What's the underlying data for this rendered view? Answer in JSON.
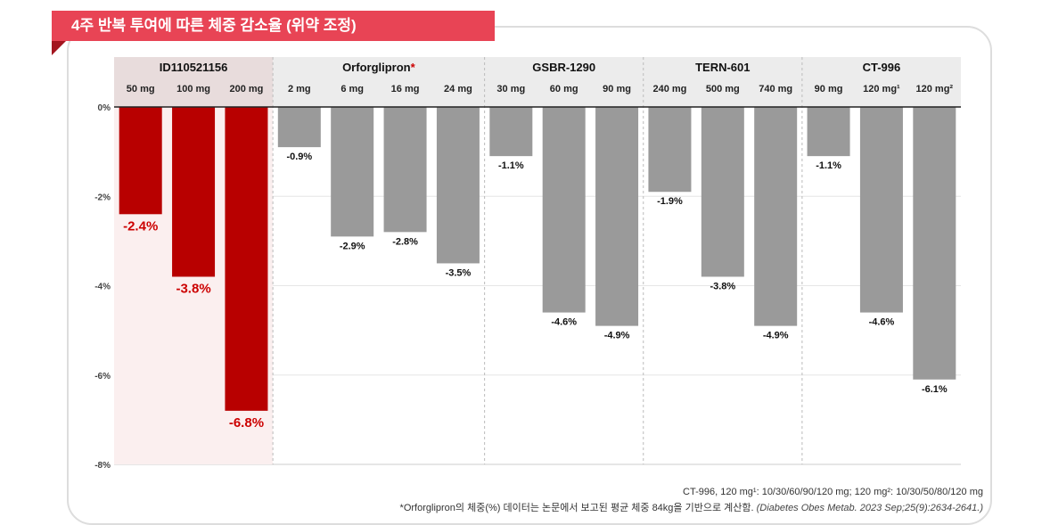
{
  "title": "4주 반복 투여에 따른 체중 감소율 (위약 조정)",
  "chart_data": {
    "type": "bar",
    "ylim": [
      -8,
      0
    ],
    "yticks": [
      "0%",
      "-2%",
      "-4%",
      "-6%",
      "-8%"
    ],
    "tick_values": [
      0,
      -2,
      -4,
      -6,
      -8
    ],
    "grid": true,
    "highlight_color": "#b80000",
    "default_color": "#9a9a9a",
    "groups": [
      {
        "name": "ID110521156",
        "highlight": true,
        "categories": [
          "50 mg",
          "100 mg",
          "200 mg"
        ],
        "values": [
          -2.4,
          -3.8,
          -6.8
        ],
        "labels": [
          "-2.4%",
          "-3.8%",
          "-6.8%"
        ]
      },
      {
        "name": "Orforglipron",
        "marker": "*",
        "categories": [
          "2 mg",
          "6 mg",
          "16 mg",
          "24 mg"
        ],
        "values": [
          -0.9,
          -2.9,
          -2.8,
          -3.5
        ],
        "labels": [
          "-0.9%",
          "-2.9%",
          "-2.8%",
          "-3.5%"
        ]
      },
      {
        "name": "GSBR-1290",
        "categories": [
          "30 mg",
          "60 mg",
          "90 mg"
        ],
        "values": [
          -1.1,
          -4.6,
          -4.9
        ],
        "labels": [
          "-1.1%",
          "-4.6%",
          "-4.9%"
        ]
      },
      {
        "name": "TERN-601",
        "categories": [
          "240 mg",
          "500 mg",
          "740 mg"
        ],
        "values": [
          -1.9,
          -3.8,
          -4.9
        ],
        "labels": [
          "-1.9%",
          "-3.8%",
          "-4.9%"
        ]
      },
      {
        "name": "CT-996",
        "categories": [
          "90 mg",
          "120 mg¹",
          "120 mg²"
        ],
        "values": [
          -1.1,
          -4.6,
          -6.1
        ],
        "labels": [
          "-1.1%",
          "-4.6%",
          "-6.1%"
        ]
      }
    ]
  },
  "notes": {
    "line1": "CT-996, 120 mg¹: 10/30/60/90/120 mg; 120 mg²: 10/30/50/80/120 mg",
    "line2": "*Orforglipron의 체중(%) 데이터는 논문에서 보고된 평균 체중 84kg을 기반으로 계산함. ",
    "citation": "(Diabetes Obes Metab. 2023 Sep;25(9):2634-2641.)"
  }
}
